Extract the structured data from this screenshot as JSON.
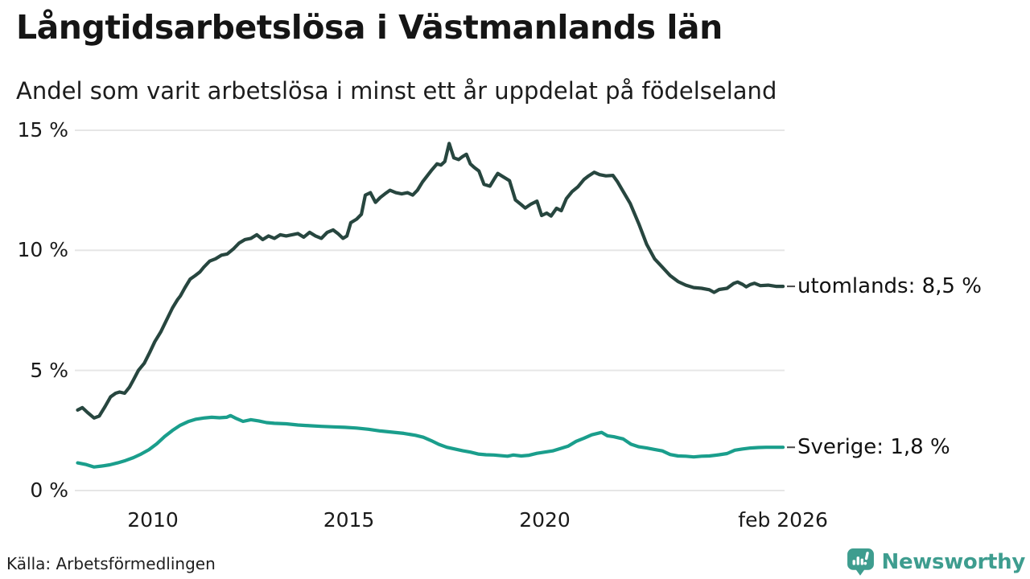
{
  "header": {
    "title": "Långtidsarbetslösa i Västmanlands län",
    "subtitle": "Andel som varit arbetslösa i minst ett år uppdelat på födelseland"
  },
  "footer": {
    "source": "Källa: Arbetsförmedlingen",
    "brand": "Newsworthy",
    "brand_icon": "newsworthy-speech-bubble-chart-icon",
    "brand_color": "#3e9d8f"
  },
  "chart_data": {
    "type": "line",
    "title": "Långtidsarbetslösa i Västmanlands län",
    "subtitle": "Andel som varit arbetslösa i minst ett år uppdelat på födelseland",
    "xlabel": "",
    "ylabel": "",
    "ylim": [
      0,
      15
    ],
    "x_range_years": [
      2008.08,
      2026.08
    ],
    "grid": true,
    "grid_color": "#e6e6e6",
    "legend_position": "end-of-line-labels",
    "y_tick_labels": [
      "15 %",
      "10 %",
      "5 %",
      "0 %"
    ],
    "y_tick_values": [
      15,
      10,
      5,
      0
    ],
    "x_tick_labels": [
      "2010",
      "2015",
      "2020",
      "feb 2026"
    ],
    "x_tick_years": [
      2010,
      2015,
      2020,
      2026.08
    ],
    "series": [
      {
        "name": "utomlands",
        "label": "utomlands: 8,5 %",
        "end_value": 8.5,
        "color": "#27463f",
        "points": [
          [
            2008.08,
            3.35
          ],
          [
            2008.2,
            3.45
          ],
          [
            2008.33,
            3.25
          ],
          [
            2008.5,
            3.02
          ],
          [
            2008.63,
            3.1
          ],
          [
            2008.78,
            3.5
          ],
          [
            2008.92,
            3.9
          ],
          [
            2009.05,
            4.05
          ],
          [
            2009.15,
            4.1
          ],
          [
            2009.28,
            4.05
          ],
          [
            2009.4,
            4.3
          ],
          [
            2009.5,
            4.6
          ],
          [
            2009.63,
            5.0
          ],
          [
            2009.78,
            5.3
          ],
          [
            2009.92,
            5.75
          ],
          [
            2010.05,
            6.2
          ],
          [
            2010.2,
            6.6
          ],
          [
            2010.35,
            7.1
          ],
          [
            2010.5,
            7.6
          ],
          [
            2010.63,
            7.95
          ],
          [
            2010.7,
            8.1
          ],
          [
            2010.82,
            8.45
          ],
          [
            2010.95,
            8.8
          ],
          [
            2011.08,
            8.95
          ],
          [
            2011.2,
            9.1
          ],
          [
            2011.3,
            9.3
          ],
          [
            2011.45,
            9.55
          ],
          [
            2011.6,
            9.65
          ],
          [
            2011.75,
            9.8
          ],
          [
            2011.9,
            9.85
          ],
          [
            2012.05,
            10.05
          ],
          [
            2012.2,
            10.3
          ],
          [
            2012.35,
            10.45
          ],
          [
            2012.5,
            10.5
          ],
          [
            2012.65,
            10.65
          ],
          [
            2012.8,
            10.45
          ],
          [
            2012.95,
            10.6
          ],
          [
            2013.1,
            10.5
          ],
          [
            2013.25,
            10.65
          ],
          [
            2013.4,
            10.6
          ],
          [
            2013.55,
            10.65
          ],
          [
            2013.7,
            10.7
          ],
          [
            2013.85,
            10.55
          ],
          [
            2014.0,
            10.75
          ],
          [
            2014.15,
            10.6
          ],
          [
            2014.3,
            10.5
          ],
          [
            2014.45,
            10.75
          ],
          [
            2014.6,
            10.85
          ],
          [
            2014.72,
            10.7
          ],
          [
            2014.85,
            10.5
          ],
          [
            2014.95,
            10.6
          ],
          [
            2015.05,
            11.15
          ],
          [
            2015.2,
            11.3
          ],
          [
            2015.32,
            11.5
          ],
          [
            2015.42,
            12.3
          ],
          [
            2015.55,
            12.4
          ],
          [
            2015.68,
            12.0
          ],
          [
            2015.8,
            12.2
          ],
          [
            2015.92,
            12.35
          ],
          [
            2016.05,
            12.5
          ],
          [
            2016.2,
            12.4
          ],
          [
            2016.35,
            12.35
          ],
          [
            2016.5,
            12.4
          ],
          [
            2016.63,
            12.3
          ],
          [
            2016.75,
            12.5
          ],
          [
            2016.88,
            12.85
          ],
          [
            2017.0,
            13.1
          ],
          [
            2017.12,
            13.35
          ],
          [
            2017.25,
            13.6
          ],
          [
            2017.35,
            13.55
          ],
          [
            2017.45,
            13.7
          ],
          [
            2017.56,
            14.45
          ],
          [
            2017.68,
            13.85
          ],
          [
            2017.8,
            13.78
          ],
          [
            2017.9,
            13.9
          ],
          [
            2018.0,
            14.0
          ],
          [
            2018.1,
            13.6
          ],
          [
            2018.2,
            13.45
          ],
          [
            2018.32,
            13.3
          ],
          [
            2018.45,
            12.75
          ],
          [
            2018.6,
            12.67
          ],
          [
            2018.72,
            13.0
          ],
          [
            2018.8,
            13.2
          ],
          [
            2018.9,
            13.1
          ],
          [
            2019.0,
            13.0
          ],
          [
            2019.1,
            12.9
          ],
          [
            2019.25,
            12.1
          ],
          [
            2019.4,
            11.9
          ],
          [
            2019.5,
            11.76
          ],
          [
            2019.65,
            11.93
          ],
          [
            2019.8,
            12.05
          ],
          [
            2019.92,
            11.45
          ],
          [
            2020.05,
            11.55
          ],
          [
            2020.16,
            11.43
          ],
          [
            2020.3,
            11.75
          ],
          [
            2020.42,
            11.65
          ],
          [
            2020.55,
            12.15
          ],
          [
            2020.7,
            12.45
          ],
          [
            2020.85,
            12.65
          ],
          [
            2021.0,
            12.95
          ],
          [
            2021.12,
            13.1
          ],
          [
            2021.26,
            13.25
          ],
          [
            2021.4,
            13.15
          ],
          [
            2021.56,
            13.1
          ],
          [
            2021.74,
            13.12
          ],
          [
            2021.85,
            12.87
          ],
          [
            2022.0,
            12.45
          ],
          [
            2022.18,
            11.95
          ],
          [
            2022.4,
            11.1
          ],
          [
            2022.6,
            10.25
          ],
          [
            2022.8,
            9.65
          ],
          [
            2023.0,
            9.3
          ],
          [
            2023.2,
            8.95
          ],
          [
            2023.4,
            8.7
          ],
          [
            2023.6,
            8.55
          ],
          [
            2023.8,
            8.45
          ],
          [
            2024.0,
            8.42
          ],
          [
            2024.2,
            8.36
          ],
          [
            2024.32,
            8.25
          ],
          [
            2024.45,
            8.37
          ],
          [
            2024.65,
            8.42
          ],
          [
            2024.82,
            8.62
          ],
          [
            2024.92,
            8.68
          ],
          [
            2025.05,
            8.58
          ],
          [
            2025.14,
            8.48
          ],
          [
            2025.25,
            8.58
          ],
          [
            2025.35,
            8.63
          ],
          [
            2025.5,
            8.53
          ],
          [
            2025.7,
            8.55
          ],
          [
            2025.9,
            8.5
          ],
          [
            2026.08,
            8.5
          ]
        ]
      },
      {
        "name": "Sverige",
        "label": "Sverige: 1,8 %",
        "end_value": 1.8,
        "color": "#1a9e8c",
        "points": [
          [
            2008.08,
            1.15
          ],
          [
            2008.3,
            1.08
          ],
          [
            2008.5,
            0.98
          ],
          [
            2008.7,
            1.02
          ],
          [
            2008.9,
            1.07
          ],
          [
            2009.1,
            1.15
          ],
          [
            2009.3,
            1.25
          ],
          [
            2009.5,
            1.37
          ],
          [
            2009.7,
            1.52
          ],
          [
            2009.9,
            1.7
          ],
          [
            2010.1,
            1.95
          ],
          [
            2010.3,
            2.25
          ],
          [
            2010.5,
            2.5
          ],
          [
            2010.7,
            2.72
          ],
          [
            2010.9,
            2.87
          ],
          [
            2011.1,
            2.97
          ],
          [
            2011.3,
            3.02
          ],
          [
            2011.5,
            3.05
          ],
          [
            2011.7,
            3.03
          ],
          [
            2011.88,
            3.05
          ],
          [
            2011.98,
            3.12
          ],
          [
            2012.1,
            3.02
          ],
          [
            2012.3,
            2.88
          ],
          [
            2012.5,
            2.95
          ],
          [
            2012.7,
            2.9
          ],
          [
            2012.9,
            2.83
          ],
          [
            2013.1,
            2.8
          ],
          [
            2013.4,
            2.78
          ],
          [
            2013.7,
            2.73
          ],
          [
            2014.0,
            2.7
          ],
          [
            2014.3,
            2.67
          ],
          [
            2014.6,
            2.65
          ],
          [
            2014.9,
            2.63
          ],
          [
            2015.2,
            2.6
          ],
          [
            2015.5,
            2.55
          ],
          [
            2015.8,
            2.48
          ],
          [
            2016.1,
            2.43
          ],
          [
            2016.4,
            2.38
          ],
          [
            2016.7,
            2.3
          ],
          [
            2016.9,
            2.22
          ],
          [
            2017.1,
            2.08
          ],
          [
            2017.3,
            1.92
          ],
          [
            2017.5,
            1.8
          ],
          [
            2017.7,
            1.73
          ],
          [
            2017.9,
            1.66
          ],
          [
            2018.1,
            1.6
          ],
          [
            2018.3,
            1.52
          ],
          [
            2018.5,
            1.49
          ],
          [
            2018.7,
            1.48
          ],
          [
            2018.9,
            1.45
          ],
          [
            2019.05,
            1.43
          ],
          [
            2019.2,
            1.48
          ],
          [
            2019.4,
            1.44
          ],
          [
            2019.6,
            1.47
          ],
          [
            2019.8,
            1.55
          ],
          [
            2020.0,
            1.6
          ],
          [
            2020.2,
            1.65
          ],
          [
            2020.4,
            1.75
          ],
          [
            2020.6,
            1.85
          ],
          [
            2020.8,
            2.05
          ],
          [
            2021.0,
            2.18
          ],
          [
            2021.2,
            2.32
          ],
          [
            2021.45,
            2.42
          ],
          [
            2021.6,
            2.28
          ],
          [
            2021.76,
            2.24
          ],
          [
            2022.0,
            2.15
          ],
          [
            2022.2,
            1.93
          ],
          [
            2022.4,
            1.82
          ],
          [
            2022.6,
            1.77
          ],
          [
            2022.8,
            1.71
          ],
          [
            2023.0,
            1.65
          ],
          [
            2023.2,
            1.5
          ],
          [
            2023.4,
            1.44
          ],
          [
            2023.6,
            1.43
          ],
          [
            2023.8,
            1.4
          ],
          [
            2024.0,
            1.43
          ],
          [
            2024.2,
            1.44
          ],
          [
            2024.45,
            1.49
          ],
          [
            2024.65,
            1.54
          ],
          [
            2024.85,
            1.68
          ],
          [
            2025.05,
            1.73
          ],
          [
            2025.25,
            1.77
          ],
          [
            2025.45,
            1.79
          ],
          [
            2025.65,
            1.8
          ],
          [
            2025.85,
            1.8
          ],
          [
            2026.08,
            1.8
          ]
        ]
      }
    ]
  }
}
